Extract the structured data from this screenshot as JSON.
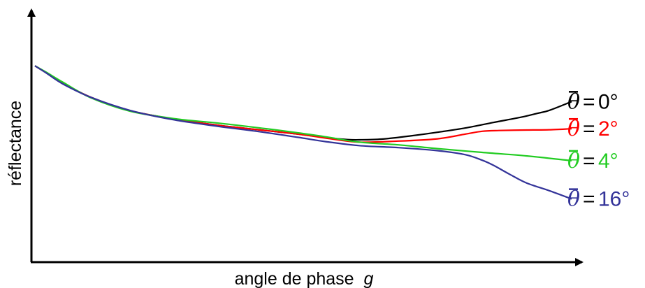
{
  "chart_data": {
    "type": "line",
    "title": "",
    "xlabel": "angle de phase",
    "xlabel_var": "g",
    "ylabel": "réflectance",
    "xlim": [
      0,
      100
    ],
    "ylim": [
      0,
      100
    ],
    "grid": false,
    "ticks": false,
    "legend_placement": "right, inline at line ends",
    "series": [
      {
        "name": "0°",
        "legend_symbol": "θ̄ =",
        "color": "#000000",
        "x": [
          0,
          2,
          5,
          10,
          17,
          25,
          33,
          40,
          47,
          52,
          56,
          58,
          62,
          67,
          72,
          77,
          82,
          87,
          90,
          92,
          96
        ],
        "y": [
          78,
          75.3,
          71.1,
          65.5,
          60.2,
          56.8,
          54.3,
          52.6,
          50.9,
          49.5,
          48.7,
          48.6,
          48.9,
          50.1,
          51.6,
          53.3,
          55.5,
          57.6,
          59.2,
          60.3,
          63.8
        ]
      },
      {
        "name": "2°",
        "legend_symbol": "θ̄ =",
        "color": "#ff0000",
        "x": [
          0,
          2,
          5,
          10,
          17,
          25,
          33,
          40,
          47,
          52,
          58,
          65,
          72,
          77,
          80,
          83,
          88,
          92,
          96
        ],
        "y": [
          78,
          75.3,
          71.1,
          65.5,
          60.2,
          56.8,
          54.3,
          52.6,
          50.9,
          49.3,
          47.7,
          48.1,
          49.0,
          50.9,
          52.0,
          52.3,
          52.5,
          52.6,
          53.0
        ]
      },
      {
        "name": "4°",
        "legend_symbol": "θ̄ =",
        "color": "#22cc22",
        "x": [
          0,
          2,
          5,
          10,
          17,
          25,
          33,
          40,
          47,
          52,
          58,
          65,
          72,
          80,
          88,
          96
        ],
        "y": [
          78,
          75.5,
          71.5,
          65.3,
          60.0,
          57.0,
          55.2,
          53.4,
          51.4,
          49.8,
          47.7,
          46.6,
          45.1,
          43.6,
          42.2,
          40.3
        ]
      },
      {
        "name": "16°",
        "legend_symbol": "θ̄ =",
        "color": "#333399",
        "x": [
          0,
          2,
          5,
          10,
          17,
          25,
          33,
          40,
          47,
          52,
          58,
          65,
          72,
          77,
          80,
          82,
          85,
          88,
          92,
          96
        ],
        "y": [
          78,
          75.2,
          70.8,
          65.5,
          60.3,
          56.5,
          53.9,
          51.9,
          49.6,
          47.9,
          46.3,
          45.5,
          44.3,
          42.7,
          40.5,
          38.5,
          34.8,
          31.4,
          28.4,
          25.1
        ]
      }
    ]
  }
}
